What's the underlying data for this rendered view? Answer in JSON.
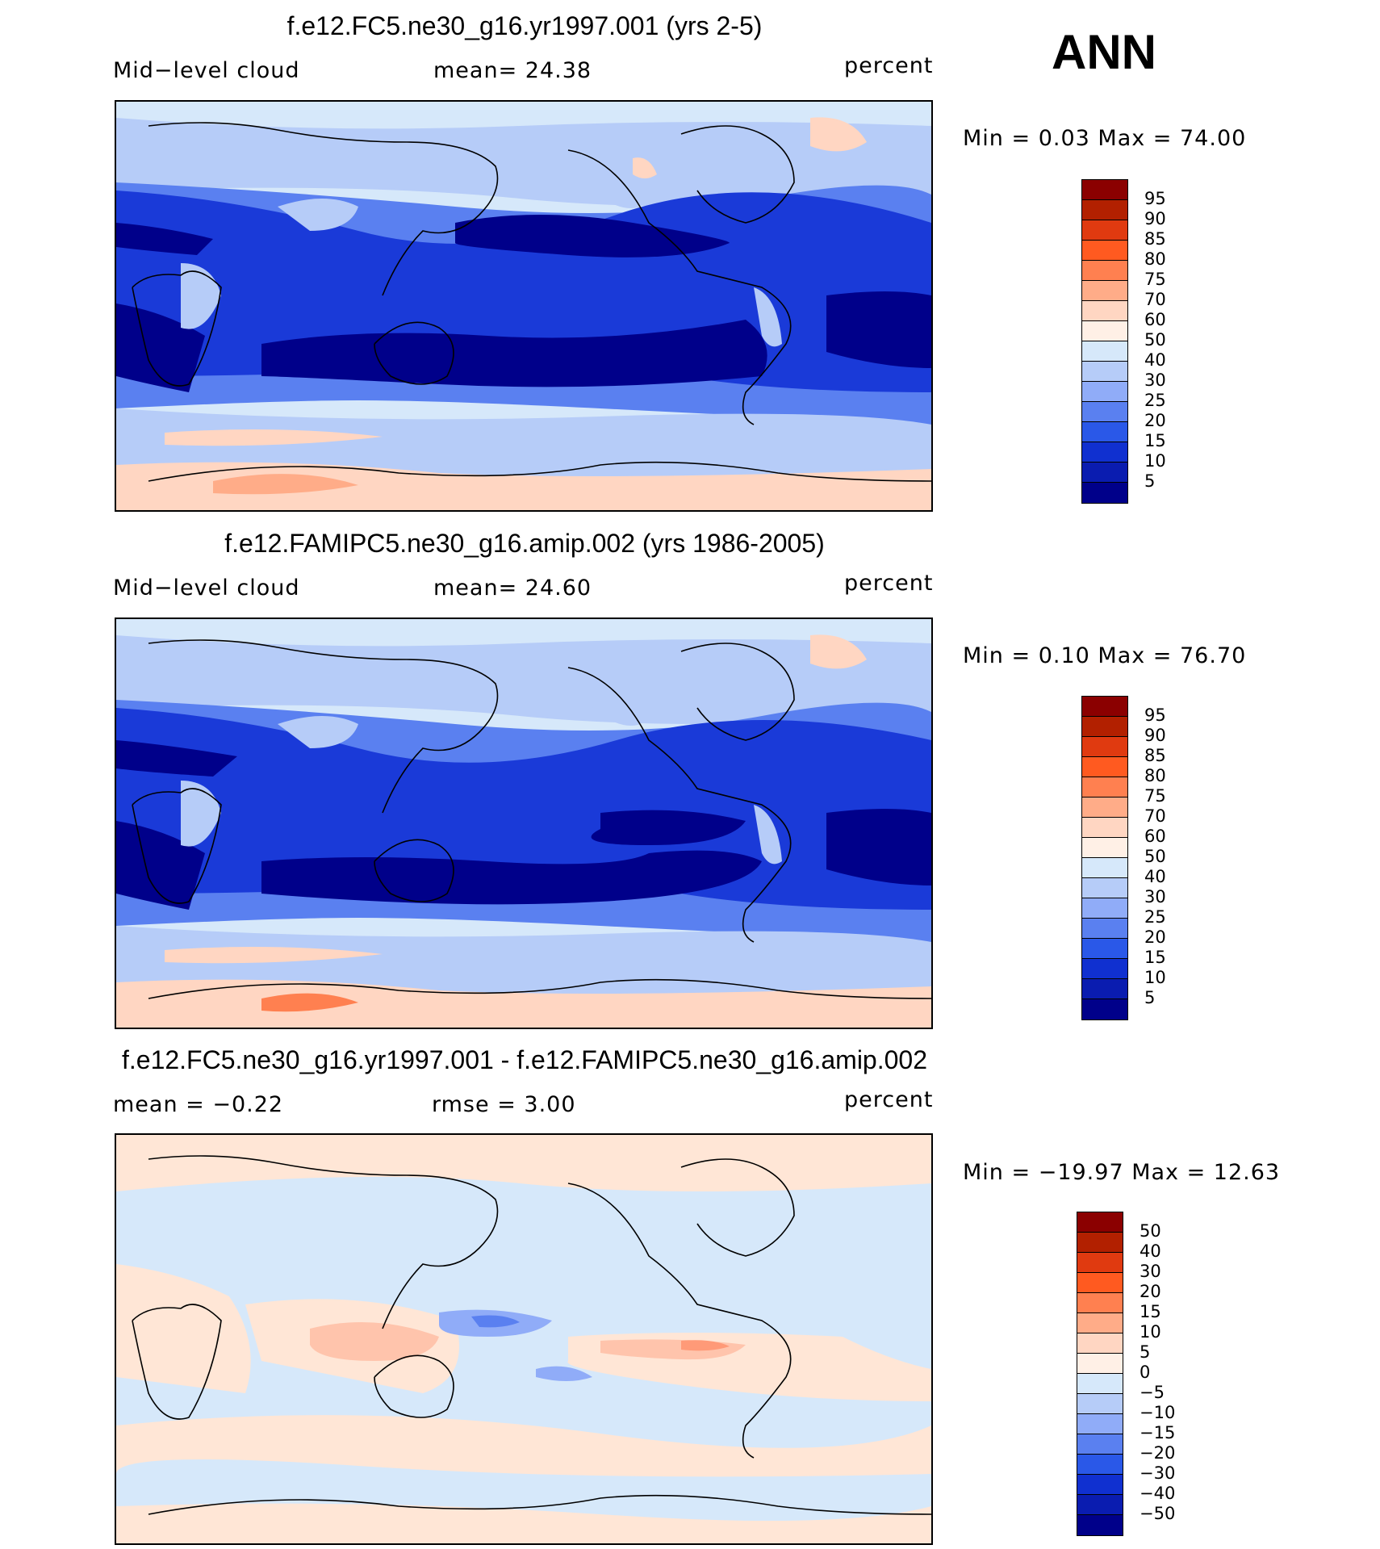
{
  "season": "ANN",
  "panels": [
    {
      "title": "f.e12.FC5.ne30_g16.yr1997.001 (yrs 2-5)",
      "left_label": "Mid−level cloud",
      "center_label": "mean=   24.38",
      "units": "percent",
      "min_max": "Min =    0.03 Max =   74.00",
      "colorbar_ticks": [
        "95",
        "90",
        "85",
        "80",
        "75",
        "70",
        "60",
        "50",
        "40",
        "30",
        "25",
        "20",
        "15",
        "10",
        "5"
      ],
      "colorbar_colors": [
        "#8b0000",
        "#b22000",
        "#e03a10",
        "#ff5a20",
        "#ff8050",
        "#ffac88",
        "#ffd6c2",
        "#fff0e6",
        "#d6e8fa",
        "#b6ccf8",
        "#90acf8",
        "#5a80f0",
        "#2a58e8",
        "#1030d0",
        "#0a1cb0",
        "#00008a"
      ],
      "regions": {
        "background": "#d6e8fa",
        "tropics_core": "#00008a",
        "tropics_mid": "#1a3ad8",
        "midlat": "#5a80f0",
        "pale": "#b6ccf8",
        "warm": "#ffd6c2",
        "hot": "#ffac88"
      }
    },
    {
      "title": "f.e12.FAMIPC5.ne30_g16.amip.002 (yrs 1986-2005)",
      "left_label": "Mid−level cloud",
      "center_label": "mean=   24.60",
      "units": "percent",
      "min_max": "Min =    0.10 Max =   76.70",
      "colorbar_ticks": [
        "95",
        "90",
        "85",
        "80",
        "75",
        "70",
        "60",
        "50",
        "40",
        "30",
        "25",
        "20",
        "15",
        "10",
        "5"
      ],
      "colorbar_colors": [
        "#8b0000",
        "#b22000",
        "#e03a10",
        "#ff5a20",
        "#ff8050",
        "#ffac88",
        "#ffd6c2",
        "#fff0e6",
        "#d6e8fa",
        "#b6ccf8",
        "#90acf8",
        "#5a80f0",
        "#2a58e8",
        "#1030d0",
        "#0a1cb0",
        "#00008a"
      ],
      "regions": {
        "background": "#d6e8fa",
        "tropics_core": "#00008a",
        "tropics_mid": "#1a3ad8",
        "midlat": "#5a80f0",
        "pale": "#b6ccf8",
        "warm": "#ffd6c2",
        "hot": "#ff8050"
      }
    },
    {
      "title": "f.e12.FC5.ne30_g16.yr1997.001 - f.e12.FAMIPC5.ne30_g16.amip.002",
      "left_label": "mean =   −0.22",
      "center_label": "rmse =    3.00",
      "units": "percent",
      "min_max": "Min = −19.97 Max =   12.63",
      "colorbar_ticks": [
        "50",
        "40",
        "30",
        "20",
        "15",
        "10",
        "5",
        "0",
        "−5",
        "−10",
        "−15",
        "−20",
        "−30",
        "−40",
        "−50"
      ],
      "colorbar_colors": [
        "#8b0000",
        "#b22000",
        "#e03a10",
        "#ff5a20",
        "#ff8050",
        "#ffac88",
        "#ffd6c2",
        "#fff0e6",
        "#d6e8fa",
        "#b6ccf8",
        "#90acf8",
        "#5a80f0",
        "#2a58e8",
        "#1030d0",
        "#0a1cb0",
        "#00008a"
      ],
      "regions": {
        "background": "#d6e8fa",
        "warm": "#ffe6d6",
        "warmer": "#ffc4ac",
        "hot": "#ff9a78",
        "cool": "#90acf8",
        "cold": "#5a80f0"
      }
    }
  ]
}
